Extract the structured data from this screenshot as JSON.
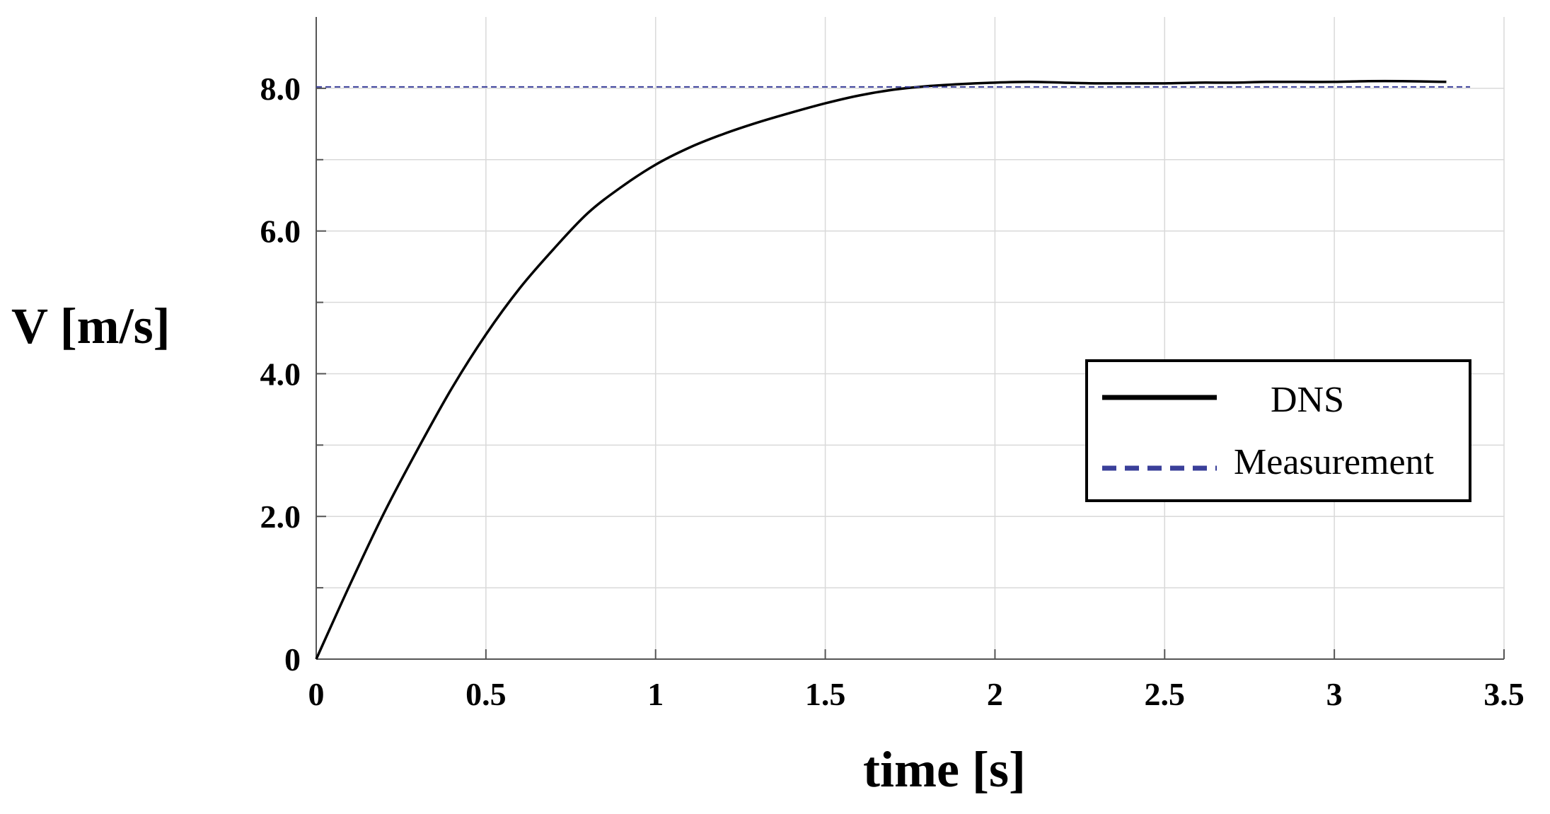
{
  "chart_data": {
    "type": "line",
    "xlabel": "time [s]",
    "ylabel": "V [m/s]",
    "xlim": [
      0,
      3.5
    ],
    "ylim": [
      0,
      9
    ],
    "x_ticks": [
      0,
      0.5,
      1,
      1.5,
      2,
      2.5,
      3,
      3.5
    ],
    "x_tick_labels": [
      "0",
      "0.5",
      "1",
      "1.5",
      "2",
      "2.5",
      "3",
      "3.5"
    ],
    "y_ticks": [
      0,
      2,
      4,
      6,
      8
    ],
    "y_tick_labels": [
      "0",
      "2.0",
      "4.0",
      "6.0",
      "8.0"
    ],
    "y_minor_ticks": [
      1,
      3,
      5,
      7
    ],
    "grid": true,
    "legend_position": "right",
    "series": [
      {
        "name": "DNS",
        "color": "#000000",
        "style": "solid",
        "x": [
          0,
          0.1,
          0.2,
          0.3,
          0.4,
          0.5,
          0.6,
          0.7,
          0.8,
          0.9,
          1.0,
          1.1,
          1.2,
          1.3,
          1.4,
          1.5,
          1.6,
          1.7,
          1.8,
          1.9,
          2.0,
          2.1,
          2.2,
          2.3,
          2.4,
          2.5,
          2.6,
          2.7,
          2.8,
          2.9,
          3.0,
          3.1,
          3.2,
          3.33
        ],
        "y": [
          0,
          1.05,
          2.05,
          2.95,
          3.8,
          4.55,
          5.2,
          5.75,
          6.25,
          6.62,
          6.93,
          7.17,
          7.36,
          7.52,
          7.66,
          7.79,
          7.9,
          7.98,
          8.03,
          8.06,
          8.08,
          8.09,
          8.08,
          8.07,
          8.07,
          8.07,
          8.08,
          8.08,
          8.09,
          8.09,
          8.09,
          8.1,
          8.1,
          8.09
        ]
      },
      {
        "name": "Measurement",
        "color": "#3a3f9a",
        "style": "dashed",
        "x": [
          0,
          3.4
        ],
        "y": [
          8.02,
          8.02
        ]
      }
    ]
  }
}
